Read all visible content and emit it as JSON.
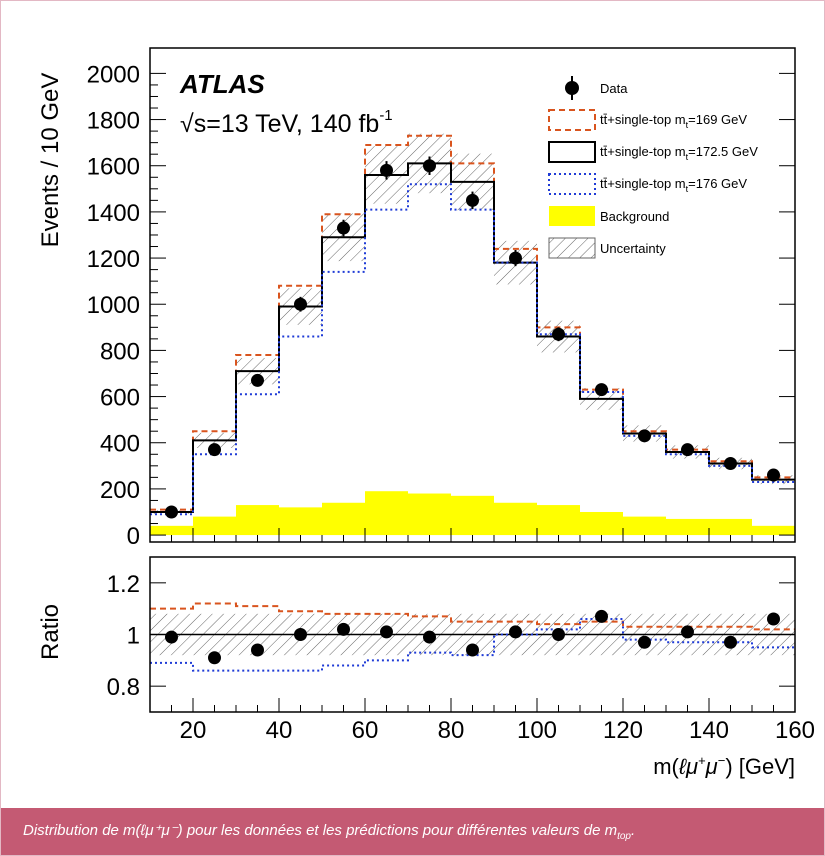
{
  "caption": {
    "main": "Distribution de m(ℓμ⁺μ⁻) pour les données et les prédictions pour différentes valeurs de m",
    "sub": "top",
    "end": "."
  },
  "colors": {
    "data": "#000000",
    "mt169": "#d9541e",
    "mt1725": "#000000",
    "mt176": "#1f3bd6",
    "background": "#ffff00",
    "caption_bar": "#c45a73"
  },
  "chart_data": [
    {
      "type": "histogram",
      "experiment": "ATLAS",
      "energy_label": "√s=13 TeV, 140 fb",
      "energy_sup": "-1",
      "ylabel": "Events / 10 GeV",
      "ylim": [
        -30,
        2110
      ],
      "yticks": [
        "0",
        "200",
        "400",
        "600",
        "800",
        "1000",
        "1200",
        "1400",
        "1600",
        "1800",
        "2000"
      ],
      "xlim": [
        10,
        160
      ],
      "bin_edges": [
        10,
        20,
        30,
        40,
        50,
        60,
        70,
        80,
        90,
        100,
        110,
        120,
        130,
        140,
        150,
        160
      ],
      "legend_position": "top-right",
      "legend": {
        "data": "Data",
        "mt169": {
          "prefix": "tt̄+single-top m",
          "sub": "t",
          "suffix": "=169 GeV"
        },
        "mt1725": {
          "prefix": "tt̄+single-top m",
          "sub": "t",
          "suffix": "=172.5 GeV"
        },
        "mt176": {
          "prefix": "tt̄+single-top m",
          "sub": "t",
          "suffix": "=176 GeV"
        },
        "background": "Background",
        "uncertainty": "Uncertainty"
      },
      "data_points": {
        "x": [
          15,
          25,
          35,
          45,
          55,
          65,
          75,
          85,
          95,
          105,
          115,
          125,
          135,
          145,
          155
        ],
        "y": [
          100,
          370,
          670,
          1000,
          1330,
          1580,
          1600,
          1450,
          1200,
          870,
          630,
          430,
          370,
          310,
          260
        ],
        "err": [
          10,
          19,
          26,
          32,
          36,
          40,
          40,
          38,
          35,
          30,
          25,
          21,
          19,
          18,
          16
        ]
      },
      "series": [
        {
          "name": "tt̄+single-top m_t=169 GeV",
          "key": "mt169",
          "style": "dashed",
          "values": [
            110,
            450,
            780,
            1080,
            1390,
            1690,
            1730,
            1610,
            1240,
            900,
            630,
            450,
            370,
            320,
            250
          ]
        },
        {
          "name": "tt̄+single-top m_t=172.5 GeV",
          "key": "mt1725",
          "style": "solid",
          "values": [
            100,
            410,
            710,
            990,
            1290,
            1560,
            1610,
            1530,
            1180,
            860,
            590,
            440,
            360,
            310,
            240
          ]
        },
        {
          "name": "tt̄+single-top m_t=176 GeV",
          "key": "mt176",
          "style": "dotted",
          "values": [
            90,
            350,
            610,
            860,
            1140,
            1410,
            1520,
            1410,
            1180,
            870,
            620,
            430,
            350,
            300,
            230
          ]
        }
      ],
      "background": [
        40,
        80,
        130,
        120,
        140,
        190,
        180,
        170,
        140,
        130,
        100,
        80,
        70,
        70,
        40
      ],
      "uncertainty_frac": 0.08
    },
    {
      "type": "ratio",
      "ylabel": "Ratio",
      "ylim": [
        0.7,
        1.3
      ],
      "yticks": [
        "0.8",
        "1",
        "1.2"
      ],
      "xlabel_parts": {
        "pre": "m(",
        "mid": "ℓμ",
        "sup1": "+",
        "mid2": "μ",
        "sup2": "−",
        "post": ") [GeV]"
      },
      "xticks": [
        "20",
        "40",
        "60",
        "80",
        "100",
        "120",
        "140",
        "160"
      ],
      "xlim": [
        10,
        160
      ],
      "data_points": {
        "x": [
          15,
          25,
          35,
          45,
          55,
          65,
          75,
          85,
          95,
          105,
          115,
          125,
          135,
          145,
          155
        ],
        "y": [
          0.99,
          0.91,
          0.94,
          1.0,
          1.02,
          1.01,
          0.99,
          0.94,
          1.01,
          1.0,
          1.07,
          0.97,
          1.01,
          0.97,
          1.06
        ]
      },
      "series": [
        {
          "key": "mt169",
          "style": "dashed",
          "values": [
            1.1,
            1.12,
            1.11,
            1.09,
            1.08,
            1.08,
            1.07,
            1.05,
            1.05,
            1.04,
            1.05,
            1.03,
            1.03,
            1.03,
            1.02
          ]
        },
        {
          "key": "mt176",
          "style": "dotted",
          "values": [
            0.89,
            0.86,
            0.86,
            0.86,
            0.88,
            0.9,
            0.93,
            0.92,
            1.0,
            1.02,
            1.06,
            0.98,
            0.97,
            0.97,
            0.95
          ]
        }
      ],
      "uncertainty_frac": 0.08
    }
  ]
}
